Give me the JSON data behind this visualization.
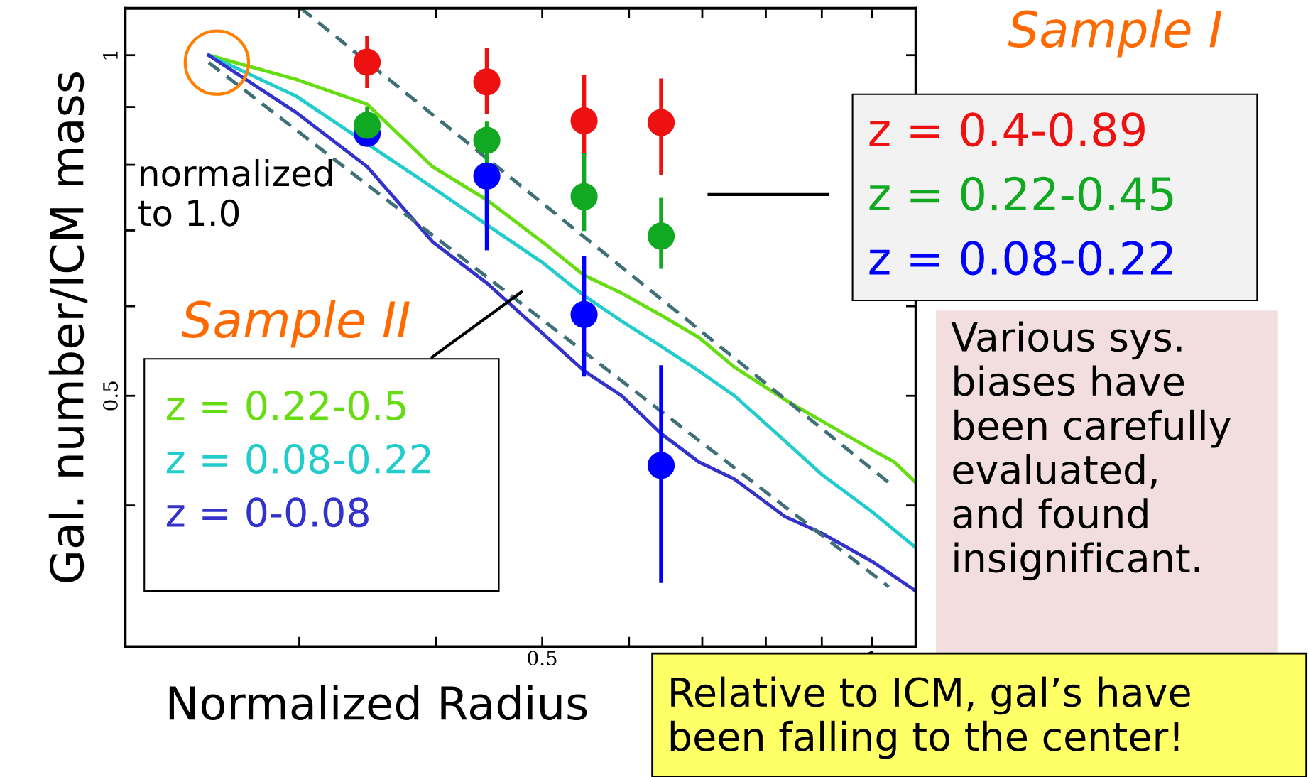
{
  "chart_data": {
    "type": "line",
    "xlabel": "Normalized Radius",
    "ylabel": "Gal. number/ICM mass",
    "log": "xy",
    "grid": false,
    "legend": "right",
    "xlim": [
      0.208,
      1.097
    ],
    "ylim": [
      0.3,
      1.1
    ],
    "xticks": [
      {
        "value": 0.3,
        "label": null
      },
      {
        "value": 0.4,
        "label": null
      },
      0.5,
      {
        "value": 0.6,
        "label": null
      },
      {
        "value": 0.7,
        "label": null
      },
      {
        "value": 0.8,
        "label": null
      },
      {
        "value": 0.9,
        "label": null
      },
      1
    ],
    "yticks": [
      {
        "value": 0.4,
        "label": null
      },
      0.5,
      {
        "value": 0.6,
        "label": null
      },
      {
        "value": 0.7,
        "label": null
      },
      {
        "value": 0.8,
        "label": null
      },
      {
        "value": 0.9,
        "label": null
      },
      1
    ],
    "series": [
      {
        "type": "scatter",
        "name": "z = 0.4-0.89",
        "color": "#ee1111",
        "marker": "circle",
        "x": [
          0.346,
          0.445,
          0.546,
          0.642
        ],
        "values": [
          0.986,
          0.947,
          0.875,
          0.872
        ],
        "errors": [
          [
            0.939,
            1.036
          ],
          [
            0.89,
            1.01
          ],
          [
            0.817,
            0.957
          ],
          [
            0.787,
            0.95
          ]
        ]
      },
      {
        "type": "scatter",
        "name": "z = 0.22-0.45",
        "color": "#11a822",
        "marker": "circle",
        "x": [
          0.346,
          0.445,
          0.546,
          0.642
        ],
        "values": [
          0.867,
          0.841,
          0.75,
          0.692
        ],
        "errors": [
          [
            0.867,
            0.897
          ],
          [
            0.708,
            0.87
          ],
          [
            0.702,
            0.816
          ],
          [
            0.65,
            0.745
          ]
        ]
      },
      {
        "type": "scatter",
        "name": "z = 0.08-0.22",
        "color": "#0000ff",
        "marker": "circle",
        "x": [
          0.346,
          0.445,
          0.546,
          0.642
        ],
        "values": [
          0.853,
          0.782,
          0.59,
          0.434
        ],
        "errors": [
          null,
          [
            0.675,
            0.782
          ],
          [
            0.522,
            0.662
          ],
          [
            0.343,
            0.53
          ]
        ]
      },
      {
        "type": "line",
        "name": "z = 0.22-0.5",
        "color": "#66dd11",
        "x": [
          0.248,
          0.298,
          0.346,
          0.397,
          0.445,
          0.5,
          0.546,
          0.591,
          0.642,
          0.695,
          0.749,
          0.833,
          0.9,
          1.0,
          1.048,
          1.097
        ],
        "values": [
          1,
          0.952,
          0.905,
          0.797,
          0.745,
          0.684,
          0.639,
          0.616,
          0.589,
          0.563,
          0.53,
          0.496,
          0.475,
          0.448,
          0.437,
          0.419
        ]
      },
      {
        "type": "line",
        "name": "z = 0.08-0.22",
        "color": "#22cccc",
        "x": [
          0.248,
          0.298,
          0.397,
          0.445,
          0.5,
          0.546,
          0.591,
          0.642,
          0.695,
          0.749,
          0.833,
          0.9,
          1.0,
          1.097
        ],
        "values": [
          1,
          0.92,
          0.764,
          0.708,
          0.656,
          0.613,
          0.582,
          0.553,
          0.526,
          0.5,
          0.456,
          0.426,
          0.395,
          0.367
        ]
      },
      {
        "type": "line",
        "name": "z = 0-0.08",
        "color": "#3333cc",
        "x": [
          0.248,
          0.298,
          0.346,
          0.397,
          0.445,
          0.5,
          0.546,
          0.591,
          0.642,
          0.695,
          0.749,
          0.833,
          0.9,
          1.0,
          1.097
        ],
        "values": [
          1,
          0.89,
          0.797,
          0.684,
          0.629,
          0.568,
          0.526,
          0.5,
          0.463,
          0.437,
          0.422,
          0.391,
          0.378,
          0.357,
          0.336
        ]
      },
      {
        "type": "line",
        "color": "#3f6f77",
        "line_style": "dashed",
        "x": [
          0.301,
          1.036
        ],
        "values": [
          1.1,
          0.419
        ]
      },
      {
        "type": "line",
        "color": "#3f6f77",
        "line_style": "dashed",
        "x": [
          0.248,
          1.036
        ],
        "values": [
          0.985,
          0.339
        ]
      }
    ],
    "annotations": [
      "Sample I",
      "Sample II",
      "normalized\nto 1.0",
      "Various sys.\nbiases have\nbeen carefully\nevaluated,\nand found\ninsignificant.",
      "Relative to ICM, gal’s have\nbeen falling to the center!"
    ]
  }
}
